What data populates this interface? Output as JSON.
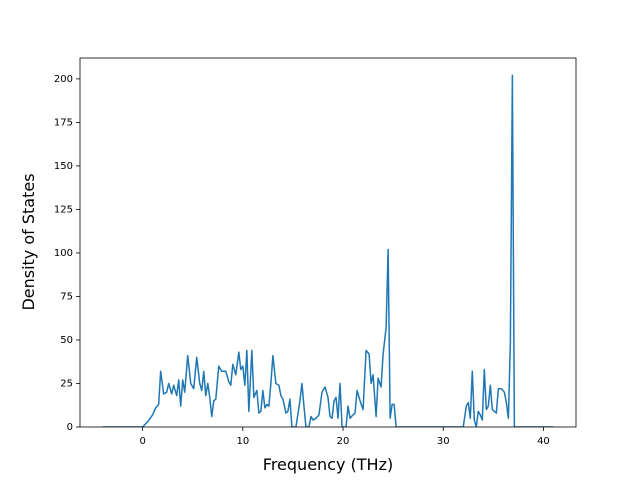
{
  "chart_data": {
    "type": "line",
    "xlabel": "Frequency (THz)",
    "ylabel": "Density of States",
    "xlim": [
      -6.25,
      43.25
    ],
    "ylim": [
      0,
      212
    ],
    "xticks": [
      0,
      10,
      20,
      30,
      40
    ],
    "yticks": [
      0,
      25,
      50,
      75,
      100,
      125,
      150,
      175,
      200
    ],
    "grid": false,
    "series": [
      {
        "color": "#1f77b4",
        "x": [
          -4,
          0,
          0.5,
          1,
          1.3,
          1.6,
          1.8,
          2.1,
          2.4,
          2.6,
          2.9,
          3.1,
          3.4,
          3.6,
          3.8,
          4.0,
          4.2,
          4.5,
          4.8,
          5.1,
          5.4,
          5.7,
          5.9,
          6.1,
          6.3,
          6.5,
          6.7,
          6.9,
          7.1,
          7.3,
          7.6,
          7.9,
          8.3,
          8.6,
          8.8,
          9.0,
          9.3,
          9.6,
          9.8,
          10.0,
          10.2,
          10.4,
          10.6,
          10.9,
          11.1,
          11.4,
          11.6,
          11.8,
          12.0,
          12.2,
          12.4,
          12.6,
          12.8,
          13.0,
          13.3,
          13.6,
          13.8,
          14.0,
          14.3,
          14.5,
          14.7,
          14.9,
          15.3,
          15.7,
          15.9,
          16.1,
          16.3,
          16.6,
          16.8,
          17.0,
          17.3,
          17.6,
          17.9,
          18.2,
          18.5,
          18.7,
          18.9,
          19.1,
          19.3,
          19.5,
          19.7,
          19.9,
          20.3,
          20.5,
          20.7,
          21.0,
          21.2,
          21.4,
          21.7,
          22.0,
          22.3,
          22.6,
          22.8,
          23.0,
          23.3,
          23.5,
          23.8,
          24.0,
          24.3,
          24.5,
          24.7,
          24.9,
          25.1,
          25.3,
          32.0,
          32.3,
          32.5,
          32.7,
          32.9,
          33.1,
          33.3,
          33.5,
          33.7,
          33.9,
          34.1,
          34.3,
          34.5,
          34.7,
          34.9,
          35.1,
          35.3,
          35.5,
          35.8,
          36.1,
          36.3,
          36.5,
          36.7,
          36.9,
          37.1,
          41
        ],
        "values": [
          0,
          0,
          3,
          7,
          11,
          13,
          32,
          19,
          20,
          25,
          19,
          24,
          18,
          27,
          12,
          27,
          20,
          41,
          25,
          22,
          40,
          25,
          21,
          32,
          18,
          25,
          17,
          6,
          15,
          16,
          35,
          32,
          32,
          26,
          24,
          36,
          30,
          43,
          33,
          35,
          24,
          44,
          9,
          44,
          17,
          21,
          8,
          9,
          21,
          11,
          13,
          12,
          25,
          41,
          25,
          24,
          18,
          16,
          8,
          9,
          16,
          0,
          0,
          15,
          25,
          12,
          0,
          0,
          6,
          4,
          5,
          7,
          20,
          23,
          17,
          6,
          5,
          15,
          17,
          5,
          25,
          0,
          0,
          12,
          5,
          7,
          8,
          21,
          15,
          10,
          44,
          42,
          25,
          30,
          6,
          28,
          23,
          42,
          57,
          102,
          5,
          13,
          13,
          0,
          0,
          12,
          14,
          5,
          32,
          4,
          0,
          9,
          7,
          4,
          33,
          10,
          12,
          24,
          10,
          9,
          8,
          22,
          22,
          20,
          14,
          5,
          48,
          202,
          0,
          0
        ]
      }
    ]
  }
}
